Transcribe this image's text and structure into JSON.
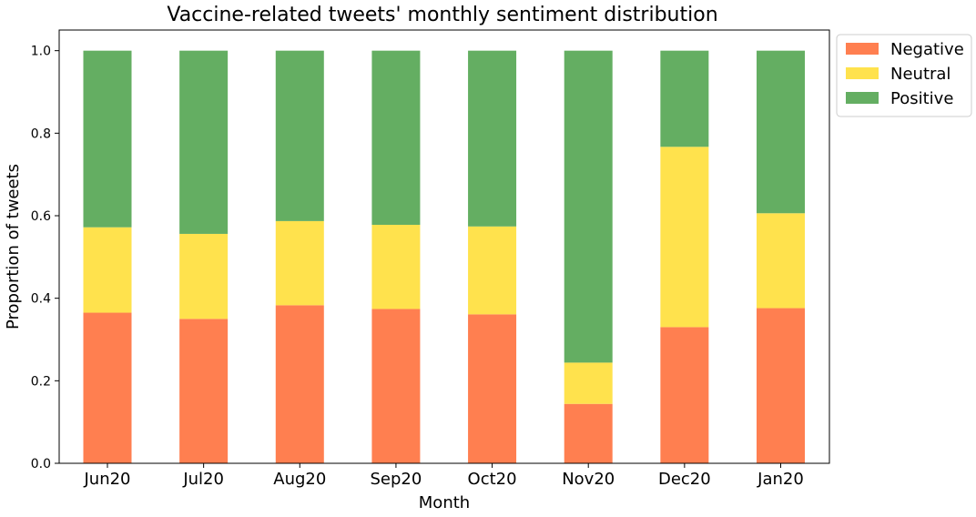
{
  "chart_data": {
    "type": "bar",
    "stacked": true,
    "title": "Vaccine-related tweets' monthly sentiment distribution",
    "xlabel": "Month",
    "ylabel": "Proportion of tweets",
    "ylim": [
      0,
      1.05
    ],
    "yticks": [
      "0.0",
      "0.2",
      "0.4",
      "0.6",
      "0.8",
      "1.0"
    ],
    "categories": [
      "Jun20",
      "Jul20",
      "Aug20",
      "Sep20",
      "Oct20",
      "Nov20",
      "Dec20",
      "Jan20"
    ],
    "series": [
      {
        "name": "Negative",
        "color": "#ff7f50",
        "values": [
          0.365,
          0.35,
          0.383,
          0.374,
          0.361,
          0.144,
          0.33,
          0.376
        ]
      },
      {
        "name": "Neutral",
        "color": "#ffe24d",
        "values": [
          0.207,
          0.206,
          0.204,
          0.204,
          0.213,
          0.1,
          0.437,
          0.23
        ]
      },
      {
        "name": "Positive",
        "color": "#64ae62",
        "values": [
          0.428,
          0.444,
          0.413,
          0.422,
          0.426,
          0.756,
          0.233,
          0.394
        ]
      }
    ],
    "grid": false,
    "legend": "upper right outside"
  }
}
